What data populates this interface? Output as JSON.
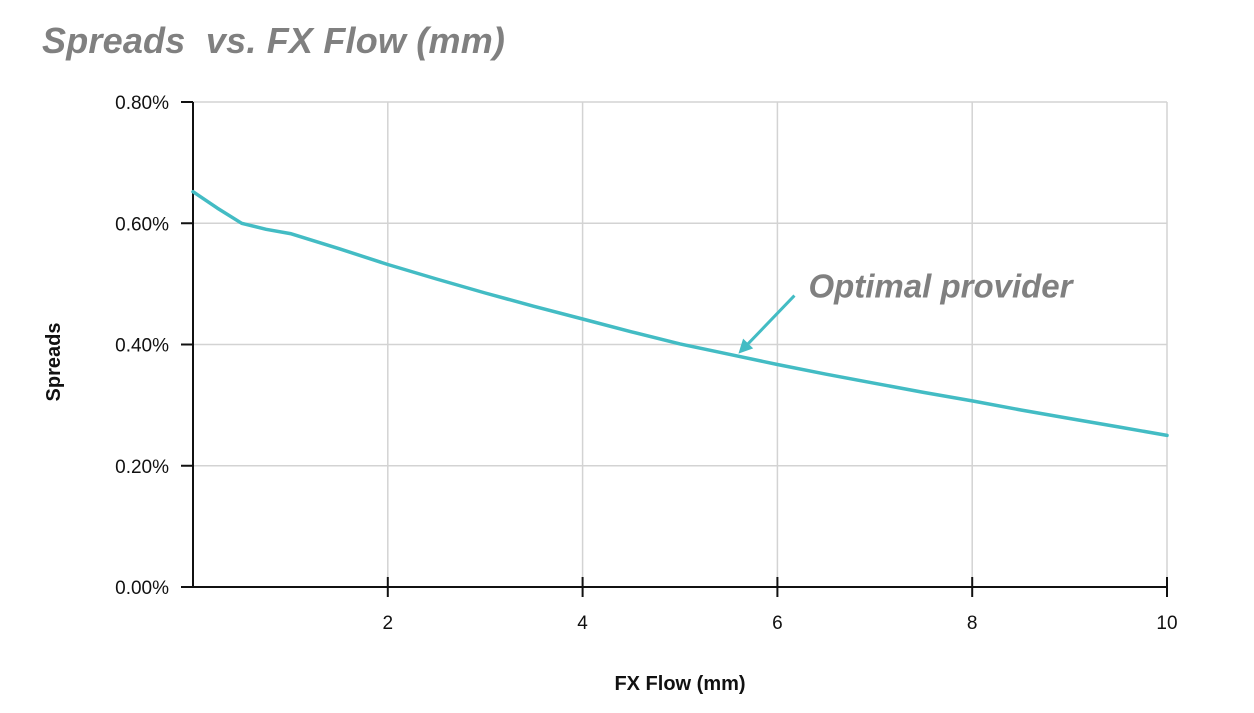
{
  "title": "Spreads  vs. FX Flow (mm)",
  "colors": {
    "line": "#43bcc4",
    "title": "#808080",
    "grid": "#d3d3d3",
    "axis": "#111111"
  },
  "chart_data": {
    "type": "line",
    "title": "Spreads  vs. FX Flow (mm)",
    "xlabel": "FX Flow (mm)",
    "ylabel": "Spreads",
    "xlim": [
      0,
      10
    ],
    "ylim": [
      0,
      0.8
    ],
    "x_ticks": [
      2,
      4,
      6,
      8,
      10
    ],
    "x_tick_labels": [
      "2",
      "4",
      "6",
      "8",
      "10"
    ],
    "y_ticks": [
      0,
      0.2,
      0.4,
      0.6,
      0.8
    ],
    "y_tick_labels": [
      "0.00%",
      "0.20%",
      "0.40%",
      "0.60%",
      "0.80%"
    ],
    "grid": true,
    "series": [
      {
        "x": [
          0,
          0.25,
          0.5,
          0.75,
          1,
          1.5,
          2,
          2.5,
          3,
          3.5,
          4,
          4.5,
          5,
          5.5,
          6,
          6.5,
          7,
          7.5,
          8,
          8.5,
          9,
          9.5,
          10
        ],
        "y": [
          0.652,
          0.625,
          0.6,
          0.59,
          0.583,
          0.558,
          0.532,
          0.508,
          0.485,
          0.463,
          0.442,
          0.421,
          0.401,
          0.384,
          0.367,
          0.351,
          0.336,
          0.321,
          0.307,
          0.292,
          0.278,
          0.264,
          0.25
        ]
      }
    ],
    "annotations": [
      {
        "text": "Optimal provider",
        "x": 5.6,
        "y": 0.385
      }
    ]
  }
}
